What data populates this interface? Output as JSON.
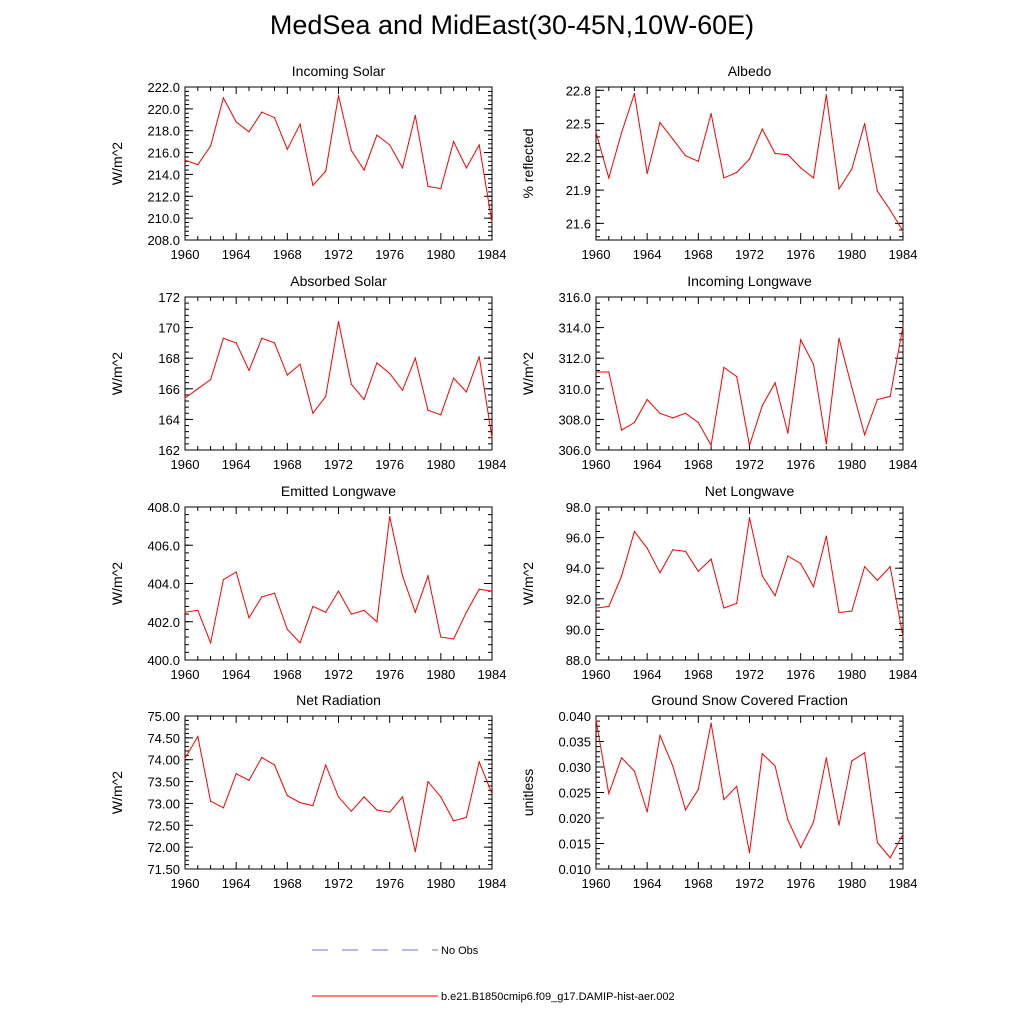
{
  "title": "MedSea and MidEast(30-45N,10W-60E)",
  "colors": {
    "model": "#ff0000",
    "obs": "#6f6fd0",
    "axis": "#000000"
  },
  "legend": {
    "obs_label": "No Obs",
    "model_label": "b.e21.B1850cmip6.f09_g17.DAMIP-hist-aer.002"
  },
  "chart_data": [
    {
      "type": "line",
      "title": "Incoming Solar",
      "ylabel": "W/m^2",
      "xlim": [
        1960,
        1984
      ],
      "ylim": [
        208,
        222
      ],
      "xticks": [
        1960,
        1964,
        1968,
        1972,
        1976,
        1980,
        1984
      ],
      "xtick_labels": [
        "1960",
        "1964",
        "1968",
        "1972",
        "1976",
        "1980",
        "1984"
      ],
      "yticks": [
        208,
        210,
        212,
        214,
        216,
        218,
        220,
        222
      ],
      "ytick_labels": [
        "208.0",
        "210.0",
        "212.0",
        "214.0",
        "216.0",
        "218.0",
        "220.0",
        "222.0"
      ],
      "yminor": 0.4,
      "x": [
        1960,
        1961,
        1962,
        1963,
        1964,
        1965,
        1966,
        1967,
        1968,
        1969,
        1970,
        1971,
        1972,
        1973,
        1974,
        1975,
        1976,
        1977,
        1978,
        1979,
        1980,
        1981,
        1982,
        1983,
        1984
      ],
      "values": [
        215.3,
        214.9,
        216.6,
        221.0,
        218.8,
        217.9,
        219.7,
        219.2,
        216.3,
        218.6,
        213.0,
        214.3,
        221.2,
        216.2,
        214.4,
        217.6,
        216.7,
        214.6,
        219.4,
        212.9,
        212.7,
        217.0,
        214.6,
        216.7,
        209.6
      ]
    },
    {
      "type": "line",
      "title": "Albedo",
      "ylabel": "% reflected",
      "xlim": [
        1960,
        1984
      ],
      "ylim": [
        21.45,
        22.83
      ],
      "xticks": [
        1960,
        1964,
        1968,
        1972,
        1976,
        1980,
        1984
      ],
      "xtick_labels": [
        "1960",
        "1964",
        "1968",
        "1972",
        "1976",
        "1980",
        "1984"
      ],
      "yticks": [
        21.6,
        21.9,
        22.2,
        22.5,
        22.8
      ],
      "ytick_labels": [
        "21.6",
        "21.9",
        "22.2",
        "22.5",
        "22.8"
      ],
      "yminor": 0.06,
      "x": [
        1960,
        1961,
        1962,
        1963,
        1964,
        1965,
        1966,
        1967,
        1968,
        1969,
        1970,
        1971,
        1972,
        1973,
        1974,
        1975,
        1976,
        1977,
        1978,
        1979,
        1980,
        1981,
        1982,
        1983,
        1984
      ],
      "values": [
        22.42,
        22.01,
        22.42,
        22.77,
        22.05,
        22.51,
        22.36,
        22.21,
        22.16,
        22.59,
        22.01,
        22.06,
        22.18,
        22.45,
        22.23,
        22.22,
        22.1,
        22.01,
        22.76,
        21.91,
        22.09,
        22.5,
        21.89,
        21.72,
        21.53
      ]
    },
    {
      "type": "line",
      "title": "Absorbed Solar",
      "ylabel": "W/m^2",
      "xlim": [
        1960,
        1984
      ],
      "ylim": [
        162,
        172
      ],
      "xticks": [
        1960,
        1964,
        1968,
        1972,
        1976,
        1980,
        1984
      ],
      "xtick_labels": [
        "1960",
        "1964",
        "1968",
        "1972",
        "1976",
        "1980",
        "1984"
      ],
      "yticks": [
        162,
        164,
        166,
        168,
        170,
        172
      ],
      "ytick_labels": [
        "162",
        "164",
        "166",
        "168",
        "170",
        "172"
      ],
      "yminor": 0.4,
      "x": [
        1960,
        1961,
        1962,
        1963,
        1964,
        1965,
        1966,
        1967,
        1968,
        1969,
        1970,
        1971,
        1972,
        1973,
        1974,
        1975,
        1976,
        1977,
        1978,
        1979,
        1980,
        1981,
        1982,
        1983,
        1984
      ],
      "values": [
        165.4,
        166.0,
        166.6,
        169.3,
        169.0,
        167.2,
        169.3,
        169.0,
        166.9,
        167.6,
        164.4,
        165.5,
        170.4,
        166.3,
        165.3,
        167.7,
        167.0,
        165.9,
        168.0,
        164.6,
        164.3,
        166.7,
        165.8,
        168.1,
        162.8
      ]
    },
    {
      "type": "line",
      "title": "Incoming Longwave",
      "ylabel": "W/m^2",
      "xlim": [
        1960,
        1984
      ],
      "ylim": [
        306,
        316
      ],
      "xticks": [
        1960,
        1964,
        1968,
        1972,
        1976,
        1980,
        1984
      ],
      "xtick_labels": [
        "1960",
        "1964",
        "1968",
        "1972",
        "1976",
        "1980",
        "1984"
      ],
      "yticks": [
        306,
        308,
        310,
        312,
        314,
        316
      ],
      "ytick_labels": [
        "306.0",
        "308.0",
        "310.0",
        "312.0",
        "314.0",
        "316.0"
      ],
      "yminor": 0.4,
      "x": [
        1960,
        1961,
        1962,
        1963,
        1964,
        1965,
        1966,
        1967,
        1968,
        1969,
        1970,
        1971,
        1972,
        1973,
        1974,
        1975,
        1976,
        1977,
        1978,
        1979,
        1980,
        1981,
        1982,
        1983,
        1984
      ],
      "values": [
        311.1,
        311.1,
        307.3,
        307.8,
        309.3,
        308.4,
        308.1,
        308.4,
        307.8,
        306.3,
        311.4,
        310.8,
        306.3,
        308.9,
        310.4,
        307.1,
        313.2,
        311.6,
        306.4,
        313.3,
        310.1,
        307.0,
        309.3,
        309.5,
        314.1
      ]
    },
    {
      "type": "line",
      "title": "Emitted Longwave",
      "ylabel": "W/m^2",
      "xlim": [
        1960,
        1984
      ],
      "ylim": [
        400,
        408
      ],
      "xticks": [
        1960,
        1964,
        1968,
        1972,
        1976,
        1980,
        1984
      ],
      "xtick_labels": [
        "1960",
        "1964",
        "1968",
        "1972",
        "1976",
        "1980",
        "1984"
      ],
      "yticks": [
        400,
        402,
        404,
        406,
        408
      ],
      "ytick_labels": [
        "400.0",
        "402.0",
        "404.0",
        "406.0",
        "408.0"
      ],
      "yminor": 0.4,
      "x": [
        1960,
        1961,
        1962,
        1963,
        1964,
        1965,
        1966,
        1967,
        1968,
        1969,
        1970,
        1971,
        1972,
        1973,
        1974,
        1975,
        1976,
        1977,
        1978,
        1979,
        1980,
        1981,
        1982,
        1983,
        1984
      ],
      "values": [
        402.5,
        402.6,
        400.9,
        404.2,
        404.6,
        402.2,
        403.3,
        403.5,
        401.6,
        400.9,
        402.8,
        402.5,
        403.6,
        402.4,
        402.6,
        402.0,
        407.5,
        404.4,
        402.5,
        404.4,
        401.2,
        401.1,
        402.5,
        403.7,
        403.6
      ]
    },
    {
      "type": "line",
      "title": "Net Longwave",
      "ylabel": "W/m^2",
      "xlim": [
        1960,
        1984
      ],
      "ylim": [
        88,
        98
      ],
      "xticks": [
        1960,
        1964,
        1968,
        1972,
        1976,
        1980,
        1984
      ],
      "xtick_labels": [
        "1960",
        "1964",
        "1968",
        "1972",
        "1976",
        "1980",
        "1984"
      ],
      "yticks": [
        88,
        90,
        92,
        94,
        96,
        98
      ],
      "ytick_labels": [
        "88.0",
        "90.0",
        "92.0",
        "94.0",
        "96.0",
        "98.0"
      ],
      "yminor": 0.4,
      "x": [
        1960,
        1961,
        1962,
        1963,
        1964,
        1965,
        1966,
        1967,
        1968,
        1969,
        1970,
        1971,
        1972,
        1973,
        1974,
        1975,
        1976,
        1977,
        1978,
        1979,
        1980,
        1981,
        1982,
        1983,
        1984
      ],
      "values": [
        91.4,
        91.5,
        93.5,
        96.4,
        95.3,
        93.7,
        95.2,
        95.1,
        93.8,
        94.6,
        91.4,
        91.7,
        97.3,
        93.5,
        92.2,
        94.8,
        94.3,
        92.8,
        96.1,
        91.1,
        91.2,
        94.1,
        93.2,
        94.1,
        89.5
      ]
    },
    {
      "type": "line",
      "title": "Net Radiation",
      "ylabel": "W/m^2",
      "xlim": [
        1960,
        1984
      ],
      "ylim": [
        71.5,
        75
      ],
      "xticks": [
        1960,
        1964,
        1968,
        1972,
        1976,
        1980,
        1984
      ],
      "xtick_labels": [
        "1960",
        "1964",
        "1968",
        "1972",
        "1976",
        "1980",
        "1984"
      ],
      "yticks": [
        71.5,
        72.0,
        72.5,
        73.0,
        73.5,
        74.0,
        74.5,
        75.0
      ],
      "ytick_labels": [
        "71.50",
        "72.00",
        "72.50",
        "73.00",
        "73.50",
        "74.00",
        "74.50",
        "75.00"
      ],
      "yminor": 0.1,
      "x": [
        1960,
        1961,
        1962,
        1963,
        1964,
        1965,
        1966,
        1967,
        1968,
        1969,
        1970,
        1971,
        1972,
        1973,
        1974,
        1975,
        1976,
        1977,
        1978,
        1979,
        1980,
        1981,
        1982,
        1983,
        1984
      ],
      "values": [
        74.03,
        74.53,
        73.05,
        72.9,
        73.68,
        73.53,
        74.05,
        73.88,
        73.18,
        73.02,
        72.95,
        73.88,
        73.15,
        72.82,
        73.15,
        72.85,
        72.8,
        73.15,
        71.9,
        73.5,
        73.15,
        72.6,
        72.68,
        73.95,
        73.22
      ]
    },
    {
      "type": "line",
      "title": "Ground Snow Covered Fraction",
      "ylabel": "unitless",
      "xlim": [
        1960,
        1984
      ],
      "ylim": [
        0.01,
        0.04
      ],
      "xticks": [
        1960,
        1964,
        1968,
        1972,
        1976,
        1980,
        1984
      ],
      "xtick_labels": [
        "1960",
        "1964",
        "1968",
        "1972",
        "1976",
        "1980",
        "1984"
      ],
      "yticks": [
        0.01,
        0.015,
        0.02,
        0.025,
        0.03,
        0.035,
        0.04
      ],
      "ytick_labels": [
        "0.010",
        "0.015",
        "0.020",
        "0.025",
        "0.030",
        "0.035",
        "0.040"
      ],
      "yminor": 0.001,
      "x": [
        1960,
        1961,
        1962,
        1963,
        1964,
        1965,
        1966,
        1967,
        1968,
        1969,
        1970,
        1971,
        1972,
        1973,
        1974,
        1975,
        1976,
        1977,
        1978,
        1979,
        1980,
        1981,
        1982,
        1983,
        1984
      ],
      "values": [
        0.0392,
        0.0248,
        0.0318,
        0.0292,
        0.0212,
        0.0362,
        0.0302,
        0.0216,
        0.0256,
        0.0386,
        0.0236,
        0.0262,
        0.0132,
        0.0326,
        0.0302,
        0.0196,
        0.0142,
        0.0192,
        0.0318,
        0.0186,
        0.0312,
        0.0328,
        0.0152,
        0.0122,
        0.0168
      ]
    }
  ]
}
